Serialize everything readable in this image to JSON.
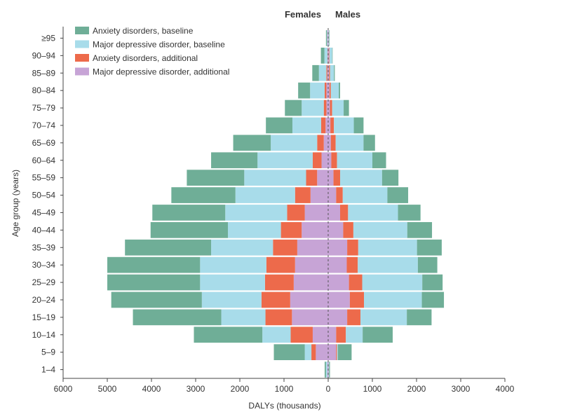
{
  "chart_data": {
    "type": "bar",
    "orientation": "horizontal",
    "layout": "population-pyramid",
    "left_side_label": "Females",
    "right_side_label": "Males",
    "xlabel": "DALYs (thousands)",
    "ylabel": "Age group (years)",
    "xlim": [
      -6000,
      4000
    ],
    "x_ticks": [
      -6000,
      -5000,
      -4000,
      -3000,
      -2000,
      -1000,
      0,
      1000,
      2000,
      3000,
      4000
    ],
    "x_tick_labels": [
      "6000",
      "5000",
      "4000",
      "3000",
      "2000",
      "1000",
      "0",
      "1000",
      "2000",
      "3000",
      "4000"
    ],
    "legend_position": "top-left",
    "categories": [
      "≥95",
      "90–94",
      "85–89",
      "80–84",
      "75–79",
      "70–74",
      "65–69",
      "60–64",
      "55–59",
      "50–54",
      "45–49",
      "40–44",
      "35–39",
      "30–34",
      "25–29",
      "20–24",
      "15–19",
      "10–14",
      "5–9",
      "1–4"
    ],
    "series": [
      {
        "name": "Anxiety disorders, baseline",
        "color": "#6fae97",
        "females": [
          20,
          80,
          150,
          270,
          380,
          600,
          850,
          1050,
          1300,
          1450,
          1650,
          1750,
          1950,
          2100,
          2100,
          2050,
          2000,
          1550,
          700,
          30
        ],
        "males": [
          10,
          10,
          20,
          30,
          120,
          220,
          260,
          310,
          370,
          470,
          510,
          560,
          560,
          440,
          460,
          500,
          560,
          680,
          310,
          20
        ]
      },
      {
        "name": "Major depressive disorder, baseline",
        "color": "#a8dcea",
        "females": [
          10,
          70,
          170,
          330,
          500,
          650,
          1050,
          1250,
          1400,
          1350,
          1400,
          1200,
          1400,
          1500,
          1470,
          1350,
          1000,
          640,
          150,
          30
        ],
        "males": [
          10,
          60,
          90,
          180,
          260,
          450,
          630,
          800,
          950,
          1010,
          1130,
          1220,
          1330,
          1360,
          1360,
          1310,
          1050,
          380,
          20,
          10
        ]
      },
      {
        "name": "Anxiety disorders, additional",
        "color": "#ed6a4b",
        "females": [
          0,
          5,
          20,
          40,
          60,
          100,
          150,
          200,
          250,
          350,
          400,
          470,
          550,
          650,
          650,
          650,
          600,
          500,
          100,
          0
        ],
        "males": [
          0,
          10,
          20,
          30,
          50,
          80,
          110,
          130,
          150,
          150,
          180,
          230,
          250,
          250,
          300,
          320,
          300,
          220,
          20,
          0
        ]
      },
      {
        "name": "Major depressive disorder, additional",
        "color": "#c7a4d6",
        "females": [
          20,
          10,
          20,
          40,
          40,
          60,
          100,
          150,
          250,
          400,
          530,
          600,
          700,
          750,
          780,
          860,
          820,
          350,
          280,
          20
        ],
        "males": [
          10,
          20,
          20,
          30,
          40,
          50,
          60,
          70,
          120,
          180,
          270,
          340,
          430,
          420,
          470,
          490,
          430,
          180,
          180,
          10
        ]
      }
    ]
  }
}
